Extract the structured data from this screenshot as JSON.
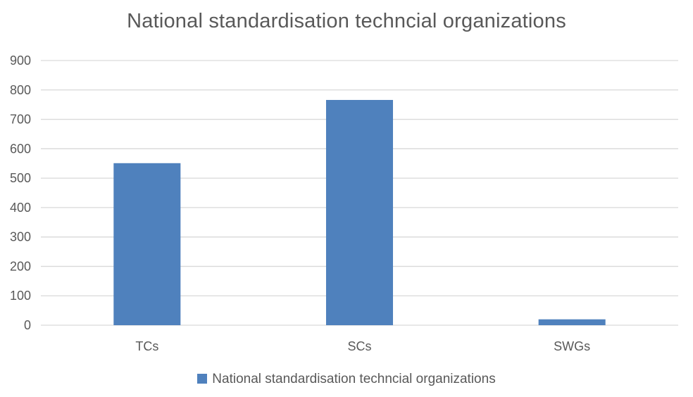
{
  "colors": {
    "bar": "#4f81bd",
    "grid": "#d9d9d9",
    "text": "#595959"
  },
  "chart_data": {
    "type": "bar",
    "title": "National standardisation techncial organizations",
    "categories": [
      "TCs",
      "SCs",
      "SWGs"
    ],
    "series": [
      {
        "name": "National standardisation techncial organizations",
        "values": [
          551,
          766,
          20
        ]
      }
    ],
    "yticks": [
      "0",
      "100",
      "200",
      "300",
      "400",
      "500",
      "600",
      "700",
      "800",
      "900"
    ],
    "ylim": [
      0,
      900
    ],
    "grid": true,
    "legend_position": "bottom"
  }
}
